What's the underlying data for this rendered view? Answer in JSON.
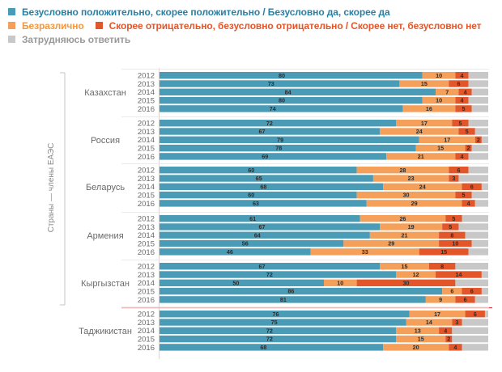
{
  "legend": {
    "positive": "Безусловно положительно, скорее положительно / Безусловно да, скорее да",
    "neutral": "Безразлично",
    "negative": "Скорее отрицательно, безусловно отрицательно / Скорее нет, безусловно нет",
    "unsure": "Затрудняюсь ответить"
  },
  "colors": {
    "positive": "#4a9bb5",
    "neutral": "#f4a05a",
    "negative": "#e2562a",
    "unsure": "#c8c8c8",
    "positive_text": "#2a7fa3",
    "neutral_text": "#f4973f",
    "negative_text": "#e2562a",
    "unsure_text": "#9a9a9a",
    "separator": "#e04040"
  },
  "chart_data": {
    "type": "bar",
    "stacked": true,
    "orientation": "horizontal",
    "group_axis_label": "Страны — члены ЕАЭС",
    "series_order": [
      "positive",
      "neutral",
      "negative",
      "unsure"
    ],
    "groups": [
      {
        "country": "Казахстан",
        "rows": [
          {
            "year": "2012",
            "values": [
              80,
              10,
              4,
              6
            ]
          },
          {
            "year": "2013",
            "values": [
              73,
              15,
              6,
              6
            ]
          },
          {
            "year": "2014",
            "values": [
              84,
              7,
              4,
              5
            ]
          },
          {
            "year": "2015",
            "values": [
              80,
              10,
              4,
              6
            ]
          },
          {
            "year": "2016",
            "values": [
              74,
              16,
              5,
              5
            ]
          }
        ]
      },
      {
        "country": "Россия",
        "rows": [
          {
            "year": "2012",
            "values": [
              72,
              17,
              5,
              6
            ]
          },
          {
            "year": "2013",
            "values": [
              67,
              24,
              5,
              4
            ]
          },
          {
            "year": "2014",
            "values": [
              79,
              17,
              2,
              2
            ]
          },
          {
            "year": "2015",
            "values": [
              78,
              15,
              2,
              5
            ]
          },
          {
            "year": "2016",
            "values": [
              69,
              21,
              4,
              6
            ]
          }
        ]
      },
      {
        "country": "Беларусь",
        "rows": [
          {
            "year": "2012",
            "values": [
              60,
              28,
              6,
              6
            ]
          },
          {
            "year": "2013",
            "values": [
              65,
              23,
              3,
              9
            ]
          },
          {
            "year": "2014",
            "values": [
              68,
              24,
              6,
              2
            ]
          },
          {
            "year": "2015",
            "values": [
              60,
              30,
              5,
              5
            ]
          },
          {
            "year": "2016",
            "values": [
              63,
              29,
              4,
              4
            ]
          }
        ]
      },
      {
        "country": "Армения",
        "rows": [
          {
            "year": "2012",
            "values": [
              61,
              26,
              5,
              8
            ]
          },
          {
            "year": "2013",
            "values": [
              67,
              19,
              5,
              9
            ]
          },
          {
            "year": "2014",
            "values": [
              64,
              21,
              8,
              7
            ]
          },
          {
            "year": "2015",
            "values": [
              56,
              29,
              10,
              5
            ]
          },
          {
            "year": "2016",
            "values": [
              46,
              33,
              15,
              6
            ]
          }
        ]
      },
      {
        "country": "Кыргызстан",
        "rows": [
          {
            "year": "2012",
            "values": [
              67,
              15,
              8,
              10
            ]
          },
          {
            "year": "2013",
            "values": [
              72,
              12,
              14,
              2
            ]
          },
          {
            "year": "2014",
            "values": [
              50,
              10,
              30,
              10
            ]
          },
          {
            "year": "2015",
            "values": [
              86,
              6,
              6,
              2
            ]
          },
          {
            "year": "2016",
            "values": [
              81,
              9,
              6,
              4
            ]
          }
        ]
      },
      {
        "country": "Таджикистан",
        "rows": [
          {
            "year": "2012",
            "values": [
              76,
              17,
              6,
              1
            ]
          },
          {
            "year": "2013",
            "values": [
              75,
              14,
              3,
              8
            ]
          },
          {
            "year": "2014",
            "values": [
              72,
              13,
              4,
              11
            ]
          },
          {
            "year": "2015",
            "values": [
              72,
              15,
              2,
              11
            ]
          },
          {
            "year": "2016",
            "values": [
              68,
              20,
              4,
              8
            ]
          }
        ]
      }
    ]
  }
}
